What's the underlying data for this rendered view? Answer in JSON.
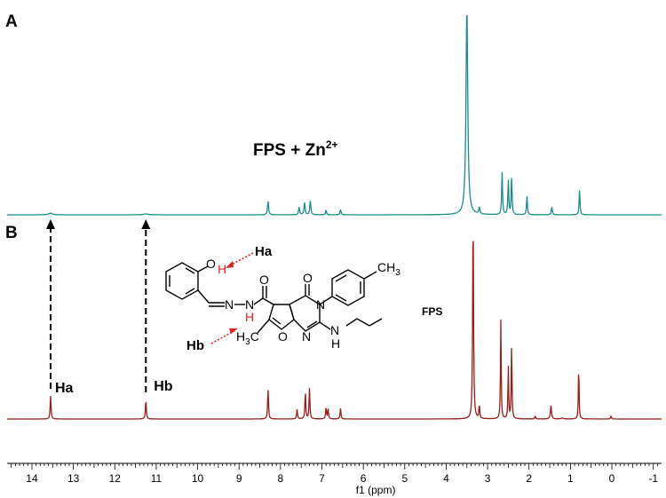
{
  "chart_data": {
    "type": "line",
    "xlabel": "f1 (ppm)",
    "xlim": [
      14.6,
      -1.2
    ],
    "x_reversed": true,
    "xticks": [
      14,
      13,
      12,
      11,
      10,
      9,
      8,
      7,
      6,
      5,
      4,
      3,
      2,
      1,
      0,
      -1
    ],
    "xtick_labels": [
      "14",
      "13",
      "12",
      "11",
      "10",
      "9",
      "8",
      "7",
      "6",
      "5",
      "4",
      "3",
      "2",
      "1",
      "0",
      "-1"
    ],
    "panels": [
      {
        "panel_label": "A",
        "annotation": "FPS + Zn",
        "annotation_sup": "2+",
        "color": "#1a8c8c",
        "peaks": [
          {
            "ppm": 13.55,
            "intensity": 0.01,
            "width": 0.05
          },
          {
            "ppm": 11.25,
            "intensity": 0.005,
            "width": 0.07
          },
          {
            "ppm": 8.3,
            "intensity": 0.08,
            "width": 0.015
          },
          {
            "ppm": 7.55,
            "intensity": 0.045,
            "width": 0.015
          },
          {
            "ppm": 7.42,
            "intensity": 0.07,
            "width": 0.015
          },
          {
            "ppm": 7.28,
            "intensity": 0.08,
            "width": 0.015
          },
          {
            "ppm": 6.9,
            "intensity": 0.025,
            "width": 0.015
          },
          {
            "ppm": 6.55,
            "intensity": 0.03,
            "width": 0.015
          },
          {
            "ppm": 3.5,
            "intensity": 1.2,
            "width": 0.025
          },
          {
            "ppm": 3.2,
            "intensity": 0.04,
            "width": 0.015
          },
          {
            "ppm": 2.65,
            "intensity": 0.25,
            "width": 0.012
          },
          {
            "ppm": 2.5,
            "intensity": 0.2,
            "width": 0.012
          },
          {
            "ppm": 2.42,
            "intensity": 0.22,
            "width": 0.012
          },
          {
            "ppm": 2.05,
            "intensity": 0.11,
            "width": 0.012
          },
          {
            "ppm": 1.45,
            "intensity": 0.045,
            "width": 0.015
          },
          {
            "ppm": 0.78,
            "intensity": 0.15,
            "width": 0.012
          }
        ]
      },
      {
        "panel_label": "B",
        "annotation": "FPS",
        "color": "#9b1b1b",
        "peaks": [
          {
            "ppm": 13.55,
            "intensity": 0.12,
            "width": 0.012
          },
          {
            "ppm": 11.25,
            "intensity": 0.1,
            "width": 0.012
          },
          {
            "ppm": 8.3,
            "intensity": 0.16,
            "width": 0.012
          },
          {
            "ppm": 7.6,
            "intensity": 0.05,
            "width": 0.012
          },
          {
            "ppm": 7.4,
            "intensity": 0.14,
            "width": 0.012
          },
          {
            "ppm": 7.3,
            "intensity": 0.16,
            "width": 0.012
          },
          {
            "ppm": 6.9,
            "intensity": 0.06,
            "width": 0.012
          },
          {
            "ppm": 6.85,
            "intensity": 0.05,
            "width": 0.012
          },
          {
            "ppm": 6.55,
            "intensity": 0.055,
            "width": 0.012
          },
          {
            "ppm": 3.35,
            "intensity": 1.1,
            "width": 0.012
          },
          {
            "ppm": 3.2,
            "intensity": 0.07,
            "width": 0.012
          },
          {
            "ppm": 2.68,
            "intensity": 0.52,
            "width": 0.01
          },
          {
            "ppm": 2.5,
            "intensity": 0.28,
            "width": 0.01
          },
          {
            "ppm": 2.42,
            "intensity": 0.4,
            "width": 0.01
          },
          {
            "ppm": 1.85,
            "intensity": 0.015,
            "width": 0.012
          },
          {
            "ppm": 1.47,
            "intensity": 0.07,
            "width": 0.015
          },
          {
            "ppm": 1.2,
            "intensity": 0.005,
            "width": 0.03
          },
          {
            "ppm": 0.8,
            "intensity": 0.28,
            "width": 0.01
          },
          {
            "ppm": 0.02,
            "intensity": 0.015,
            "width": 0.012
          }
        ],
        "peak_labels": [
          {
            "label": "Ha",
            "ppm": 13.55
          },
          {
            "label": "Hb",
            "ppm": 11.25
          }
        ]
      }
    ],
    "structure": {
      "proton_labels": [
        "Ha",
        "Hb"
      ],
      "atoms": {
        "oh_O": "O",
        "oh_H": "H",
        "N1": "N",
        "N2": "N",
        "nh_H": "H",
        "carbonyl_O1": "O",
        "carbonyl_O2": "O",
        "ring_N3": "N",
        "ring_N1": "N",
        "furan_O": "O",
        "ch3_top": "CH",
        "ch3_top_sub": "3",
        "h3c_left": "H",
        "h3c_left_sub": "3",
        "h3c_left_end": "C",
        "amine_N": "N",
        "amine_H": "H"
      }
    }
  }
}
